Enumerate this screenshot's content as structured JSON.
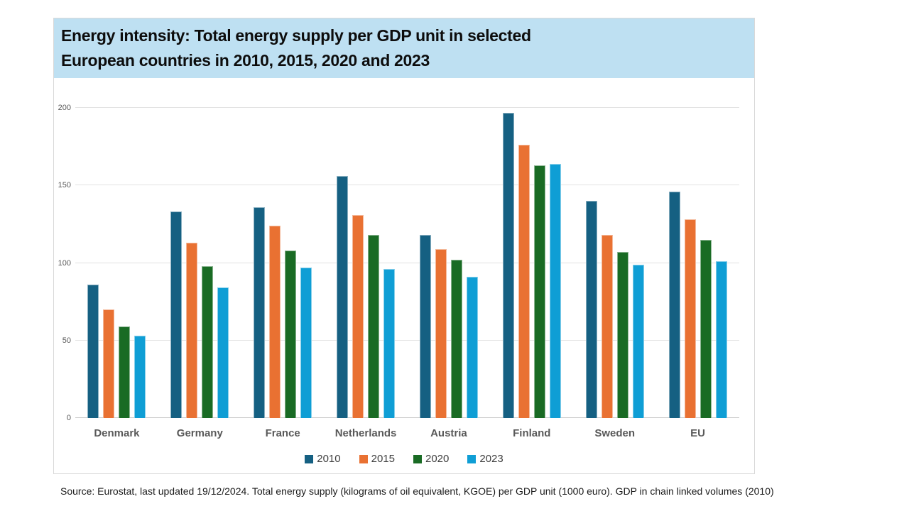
{
  "title": {
    "line1": "Energy intensity: Total energy supply per GDP unit in selected",
    "line2": "European countries in 2010, 2015, 2020 and 2023"
  },
  "footer": {
    "text": "Source: Eurostat, last updated 19/12/2024. Total energy supply (kilograms of oil equivalent, KGOE) per GDP unit (1000 euro). GDP in chain linked volumes (2010)"
  },
  "colors": {
    "title_band": "#bee0f2",
    "axis_text": "#595959",
    "legend_text": "#404040",
    "gridline": "#e2e2e2"
  },
  "chart_data": {
    "type": "bar",
    "title": "Energy intensity: Total energy supply per GDP unit in selected European countries in 2010, 2015, 2020 and 2023",
    "categories": [
      "Denmark",
      "Germany",
      "France",
      "Netherlands",
      "Austria",
      "Finland",
      "Sweden",
      "EU"
    ],
    "series": [
      {
        "name": "2010",
        "color": "#156082",
        "values": [
          86,
          133,
          136,
          156,
          118,
          197,
          140,
          146
        ]
      },
      {
        "name": "2015",
        "color": "#E97132",
        "values": [
          70,
          113,
          124,
          131,
          109,
          176,
          118,
          128
        ]
      },
      {
        "name": "2020",
        "color": "#196B24",
        "values": [
          59,
          98,
          108,
          118,
          102,
          163,
          107,
          115
        ]
      },
      {
        "name": "2023",
        "color": "#0F9ED5",
        "values": [
          53,
          84,
          97,
          96,
          91,
          164,
          99,
          101
        ]
      }
    ],
    "xlabel": "",
    "ylabel": "",
    "ylim": [
      0,
      200
    ],
    "yticks": [
      0,
      50,
      100,
      150,
      200
    ],
    "grid": true,
    "legend_position": "bottom"
  }
}
